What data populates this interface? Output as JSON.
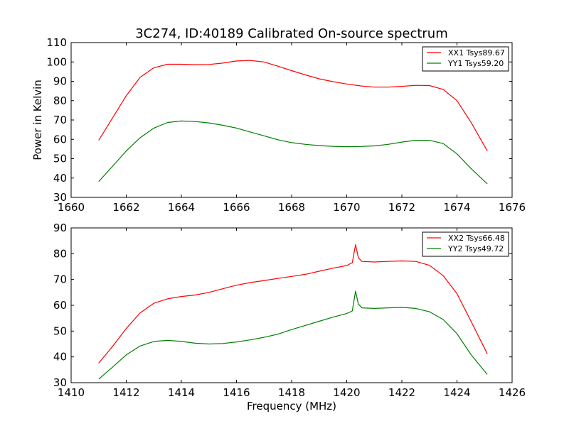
{
  "figure": {
    "title": "3C274, ID:40189 Calibrated On-source spectrum",
    "xlabel": "Frequency (MHz)",
    "ylabel": "Power in Kelvin"
  },
  "chart_data": [
    {
      "type": "line",
      "title": "3C274, ID:40189 Calibrated On-source spectrum",
      "xlabel": "",
      "ylabel": "Power in Kelvin",
      "xlim": [
        1660,
        1676
      ],
      "ylim": [
        30,
        110
      ],
      "xticks": [
        1660,
        1662,
        1664,
        1666,
        1668,
        1670,
        1672,
        1674,
        1676
      ],
      "yticks": [
        30,
        40,
        50,
        60,
        70,
        80,
        90,
        100,
        110
      ],
      "legend_position": "top-right",
      "grid": false,
      "series": [
        {
          "name": "XX1 Tsys89.67",
          "color": "#ff0000",
          "points": [
            [
              1661.0,
              59.5
            ],
            [
              1661.5,
              71.0
            ],
            [
              1662.0,
              82.5
            ],
            [
              1662.5,
              92.0
            ],
            [
              1663.0,
              97.0
            ],
            [
              1663.5,
              98.8
            ],
            [
              1664.0,
              98.8
            ],
            [
              1664.5,
              98.6
            ],
            [
              1665.0,
              98.7
            ],
            [
              1665.5,
              99.4
            ],
            [
              1666.0,
              100.5
            ],
            [
              1666.5,
              100.8
            ],
            [
              1667.0,
              100.0
            ],
            [
              1667.5,
              97.8
            ],
            [
              1668.0,
              95.5
            ],
            [
              1668.5,
              93.3
            ],
            [
              1669.0,
              91.3
            ],
            [
              1669.5,
              89.8
            ],
            [
              1670.0,
              88.6
            ],
            [
              1670.5,
              87.6
            ],
            [
              1671.0,
              87.0
            ],
            [
              1671.5,
              87.0
            ],
            [
              1672.0,
              87.4
            ],
            [
              1672.5,
              87.9
            ],
            [
              1673.0,
              87.8
            ],
            [
              1673.5,
              85.8
            ],
            [
              1674.0,
              80.0
            ],
            [
              1674.5,
              69.0
            ],
            [
              1675.1,
              54.0
            ]
          ]
        },
        {
          "name": "YY1 Tsys59.20",
          "color": "#008000",
          "points": [
            [
              1661.0,
              38.2
            ],
            [
              1661.5,
              46.0
            ],
            [
              1662.0,
              54.0
            ],
            [
              1662.5,
              60.8
            ],
            [
              1663.0,
              65.8
            ],
            [
              1663.5,
              68.7
            ],
            [
              1664.0,
              69.5
            ],
            [
              1664.5,
              69.2
            ],
            [
              1665.0,
              68.5
            ],
            [
              1665.5,
              67.3
            ],
            [
              1666.0,
              65.8
            ],
            [
              1666.5,
              63.8
            ],
            [
              1667.0,
              61.8
            ],
            [
              1667.5,
              59.8
            ],
            [
              1668.0,
              58.3
            ],
            [
              1668.5,
              57.4
            ],
            [
              1669.0,
              56.8
            ],
            [
              1669.5,
              56.4
            ],
            [
              1670.0,
              56.2
            ],
            [
              1670.5,
              56.3
            ],
            [
              1671.0,
              56.6
            ],
            [
              1671.5,
              57.4
            ],
            [
              1672.0,
              58.6
            ],
            [
              1672.5,
              59.5
            ],
            [
              1673.0,
              59.5
            ],
            [
              1673.5,
              57.8
            ],
            [
              1674.0,
              52.5
            ],
            [
              1674.5,
              45.0
            ],
            [
              1675.1,
              37.0
            ]
          ]
        }
      ]
    },
    {
      "type": "line",
      "title": "",
      "xlabel": "Frequency (MHz)",
      "ylabel": "",
      "xlim": [
        1410,
        1426
      ],
      "ylim": [
        30,
        90
      ],
      "xticks": [
        1410,
        1412,
        1414,
        1416,
        1418,
        1420,
        1422,
        1424,
        1426
      ],
      "yticks": [
        30,
        40,
        50,
        60,
        70,
        80,
        90
      ],
      "legend_position": "top-right",
      "grid": false,
      "series": [
        {
          "name": "XX2 Tsys66.48",
          "color": "#ff0000",
          "points": [
            [
              1411.0,
              37.6
            ],
            [
              1411.5,
              44.0
            ],
            [
              1412.0,
              51.0
            ],
            [
              1412.5,
              57.0
            ],
            [
              1413.0,
              60.8
            ],
            [
              1413.5,
              62.5
            ],
            [
              1414.0,
              63.4
            ],
            [
              1414.5,
              64.0
            ],
            [
              1415.0,
              65.0
            ],
            [
              1415.5,
              66.4
            ],
            [
              1416.0,
              67.8
            ],
            [
              1416.5,
              68.8
            ],
            [
              1417.0,
              69.6
            ],
            [
              1417.5,
              70.4
            ],
            [
              1418.0,
              71.2
            ],
            [
              1418.5,
              72.0
            ],
            [
              1419.0,
              73.2
            ],
            [
              1419.5,
              74.4
            ],
            [
              1420.0,
              75.4
            ],
            [
              1420.2,
              76.5
            ],
            [
              1420.32,
              83.5
            ],
            [
              1420.42,
              78.5
            ],
            [
              1420.55,
              77.0
            ],
            [
              1421.0,
              76.8
            ],
            [
              1421.5,
              77.0
            ],
            [
              1422.0,
              77.2
            ],
            [
              1422.5,
              77.0
            ],
            [
              1423.0,
              75.5
            ],
            [
              1423.5,
              71.5
            ],
            [
              1424.0,
              64.5
            ],
            [
              1424.5,
              54.0
            ],
            [
              1425.1,
              41.2
            ]
          ]
        },
        {
          "name": "YY2 Tsys49.72",
          "color": "#008000",
          "points": [
            [
              1411.0,
              31.4
            ],
            [
              1411.5,
              36.0
            ],
            [
              1412.0,
              40.8
            ],
            [
              1412.5,
              44.2
            ],
            [
              1413.0,
              46.0
            ],
            [
              1413.5,
              46.4
            ],
            [
              1414.0,
              46.0
            ],
            [
              1414.5,
              45.3
            ],
            [
              1415.0,
              45.0
            ],
            [
              1415.5,
              45.2
            ],
            [
              1416.0,
              45.8
            ],
            [
              1416.5,
              46.6
            ],
            [
              1417.0,
              47.6
            ],
            [
              1417.5,
              48.8
            ],
            [
              1418.0,
              50.6
            ],
            [
              1418.5,
              52.2
            ],
            [
              1419.0,
              53.8
            ],
            [
              1419.5,
              55.4
            ],
            [
              1420.0,
              56.8
            ],
            [
              1420.2,
              57.8
            ],
            [
              1420.32,
              65.5
            ],
            [
              1420.42,
              60.5
            ],
            [
              1420.55,
              59.0
            ],
            [
              1421.0,
              58.8
            ],
            [
              1421.5,
              59.0
            ],
            [
              1422.0,
              59.2
            ],
            [
              1422.5,
              58.8
            ],
            [
              1423.0,
              57.5
            ],
            [
              1423.5,
              54.5
            ],
            [
              1424.0,
              49.0
            ],
            [
              1424.5,
              41.0
            ],
            [
              1425.1,
              33.2
            ]
          ]
        }
      ]
    }
  ]
}
